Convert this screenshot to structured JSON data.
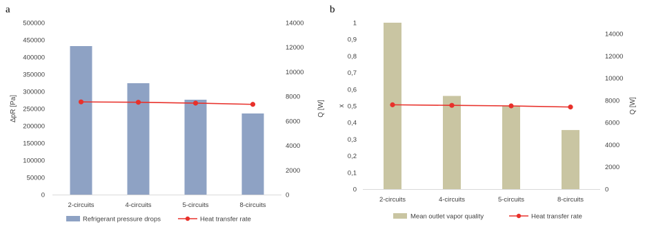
{
  "chart_data": [
    {
      "panel_label": "a",
      "type": "bar+line",
      "categories": [
        "2-circuits",
        "4-circuits",
        "5-circuits",
        "8-circuits"
      ],
      "bar_series": {
        "name": "Refrigerant pressure drops",
        "values": [
          432000,
          324000,
          276000,
          236000
        ],
        "color": "#8EA2C4"
      },
      "line_series": {
        "name": "Heat transfer rate",
        "values": [
          7550,
          7520,
          7450,
          7350
        ],
        "color": "#E8312B"
      },
      "ylabel": "ΔpR [Pa]",
      "y2label": "Q [W]",
      "ylim": [
        0,
        500000
      ],
      "yticks": [
        "0",
        "50000",
        "100000",
        "150000",
        "200000",
        "250000",
        "300000",
        "350000",
        "400000",
        "450000",
        "500000"
      ],
      "y2lim": [
        0,
        14000
      ],
      "y2ticks": [
        "0",
        "2000",
        "4000",
        "6000",
        "8000",
        "10000",
        "12000",
        "14000"
      ],
      "grid": false,
      "legend_position": "bottom"
    },
    {
      "panel_label": "b",
      "type": "bar+line",
      "categories": [
        "2-circuits",
        "4-circuits",
        "5-circuits",
        "8-circuits"
      ],
      "bar_series": {
        "name": "Mean outlet vapor quality",
        "values": [
          1.0,
          0.56,
          0.5,
          0.355
        ],
        "color": "#C9C5A2"
      },
      "line_series": {
        "name": "Heat transfer rate",
        "values": [
          7600,
          7550,
          7500,
          7400
        ],
        "color": "#E8312B"
      },
      "ylabel": "x",
      "y2label": "Q [W]",
      "ylim": [
        0,
        1
      ],
      "yticks": [
        "0",
        "0,1",
        "0,2",
        "0,3",
        "0,4",
        "0,5",
        "0,6",
        "0,7",
        "0,8",
        "0,9",
        "1"
      ],
      "y2lim": [
        0,
        15000
      ],
      "y2ticks": [
        "0",
        "2000",
        "4000",
        "6000",
        "8000",
        "10000",
        "12000",
        "14000"
      ],
      "grid": false,
      "legend_position": "bottom"
    }
  ]
}
